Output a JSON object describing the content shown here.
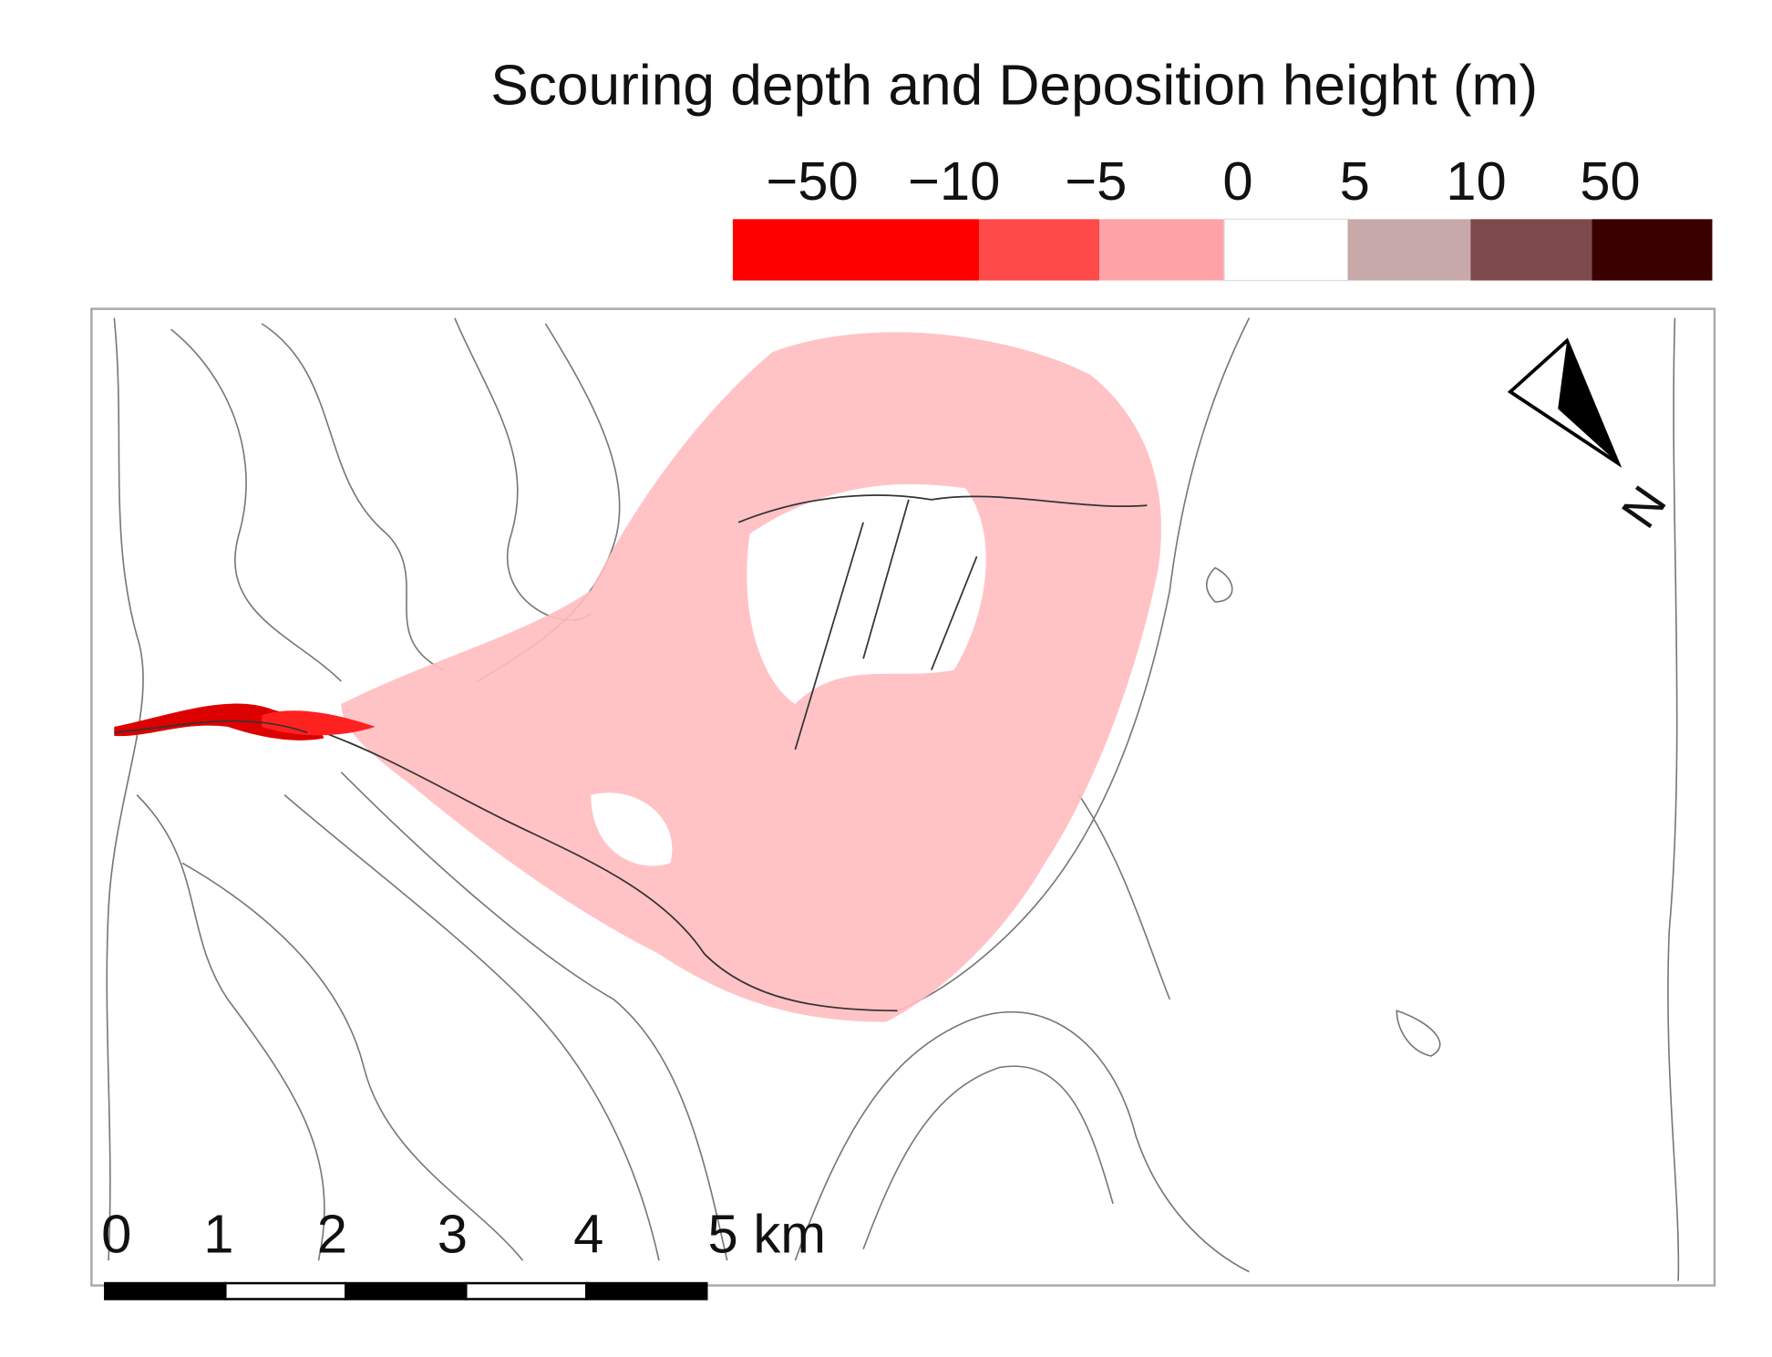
{
  "legend": {
    "title": "Scouring depth and Deposition height (m)",
    "labels": [
      "−50",
      "−10",
      "−5",
      "0",
      "5",
      "10",
      "50"
    ],
    "colors": [
      "#ff0000",
      "#ff4a4a",
      "#ffa3a8",
      "#ffffff",
      "#c8a9aa",
      "#7d4a4c",
      "#3a0000"
    ]
  },
  "north_arrow": {
    "label": "N"
  },
  "scale_bar": {
    "labels": [
      "0",
      "1",
      "2",
      "3",
      "4",
      "5 km"
    ]
  }
}
